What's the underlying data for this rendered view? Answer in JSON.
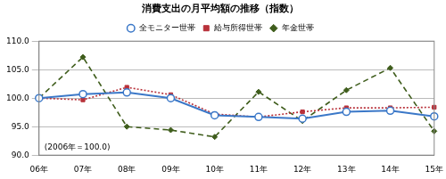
{
  "chart_data": {
    "type": "line",
    "title": "消費支出の月平均額の推移（指数）",
    "annotation": "(2006年＝100.0)",
    "categories": [
      "06年",
      "07年",
      "08年",
      "09年",
      "10年",
      "11年",
      "12年",
      "13年",
      "14年",
      "15年"
    ],
    "series": [
      {
        "name": "全モニター世帯",
        "color": "#3b78c8",
        "marker": "circle",
        "line_style": "solid",
        "values": [
          100.0,
          100.7,
          101.0,
          100.0,
          97.0,
          96.7,
          96.4,
          97.6,
          97.8,
          96.8
        ]
      },
      {
        "name": "給与所得世帯",
        "color": "#b8313a",
        "marker": "square",
        "line_style": "dotted",
        "values": [
          100.0,
          99.7,
          101.9,
          100.6,
          97.2,
          96.7,
          97.6,
          98.3,
          98.3,
          98.4
        ]
      },
      {
        "name": "年金世帯",
        "color": "#3f5d1c",
        "marker": "diamond",
        "line_style": "dashed",
        "values": [
          100.0,
          107.2,
          95.0,
          94.4,
          93.2,
          101.1,
          96.0,
          101.4,
          105.3,
          94.2
        ]
      }
    ],
    "ylim": [
      90,
      110
    ],
    "yticks": [
      {
        "value": 90,
        "label": "90.0"
      },
      {
        "value": 95,
        "label": "95.0"
      },
      {
        "value": 100,
        "label": "100.0"
      },
      {
        "value": 105,
        "label": "105.0"
      },
      {
        "value": 110,
        "label": "110.0"
      }
    ],
    "grid": true,
    "legend": "top"
  }
}
